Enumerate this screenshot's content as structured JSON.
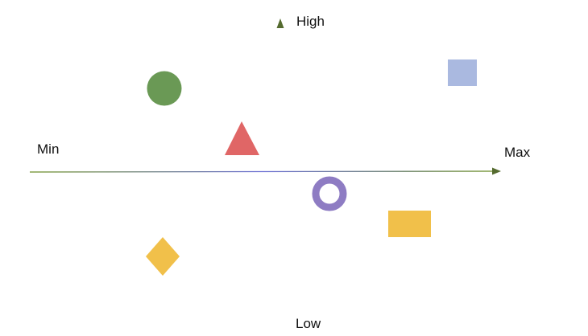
{
  "axes": {
    "high_label": "High",
    "low_label": "Low",
    "min_label": "Min",
    "max_label": "Max",
    "horizontal_color": "#6b8e23",
    "horizontal_center_color": "#6b6fd4",
    "vertical_color": "#556b2f",
    "vertical_center_color": "#8e7cc3"
  },
  "shapes": [
    {
      "name": "green-circle",
      "shape": "circle",
      "color": "#6a9955"
    },
    {
      "name": "red-triangle",
      "shape": "triangle",
      "color": "#e06666"
    },
    {
      "name": "blue-square",
      "shape": "square",
      "color": "#aab9e0"
    },
    {
      "name": "purple-ring",
      "shape": "ring",
      "color": "#8e7cc3"
    },
    {
      "name": "yellow-rectangle",
      "shape": "rectangle",
      "color": "#f1c04a"
    },
    {
      "name": "yellow-diamond",
      "shape": "diamond",
      "color": "#f1c04a"
    }
  ]
}
